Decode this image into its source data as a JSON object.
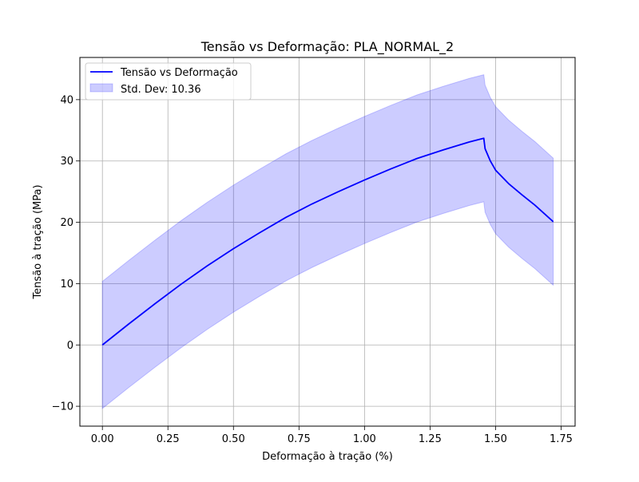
{
  "chart_data": {
    "type": "line",
    "title": "Tensão vs Deformação: PLA_NORMAL_2",
    "xlabel": "Deformação à tração (%)",
    "ylabel": "Tensão à tração (MPa)",
    "xlim": [
      -0.0859,
      1.8034
    ],
    "ylim": [
      -13.24,
      46.88
    ],
    "grid": true,
    "legend_position": "upper-left",
    "x_ticks": [
      {
        "value": 0.0,
        "label": "0.00"
      },
      {
        "value": 0.25,
        "label": "0.25"
      },
      {
        "value": 0.5,
        "label": "0.50"
      },
      {
        "value": 0.75,
        "label": "0.75"
      },
      {
        "value": 1.0,
        "label": "1.00"
      },
      {
        "value": 1.25,
        "label": "1.25"
      },
      {
        "value": 1.5,
        "label": "1.50"
      },
      {
        "value": 1.75,
        "label": "1.75"
      }
    ],
    "y_ticks": [
      {
        "value": -10,
        "label": "−10"
      },
      {
        "value": 0,
        "label": "0"
      },
      {
        "value": 10,
        "label": "10"
      },
      {
        "value": 20,
        "label": "20"
      },
      {
        "value": 30,
        "label": "30"
      },
      {
        "value": 40,
        "label": "40"
      }
    ],
    "std_dev": 10.36,
    "series": [
      {
        "name": "Tensão vs Deformação",
        "color": "#0000ff",
        "x": [
          0.0,
          0.1,
          0.2,
          0.3,
          0.4,
          0.5,
          0.6,
          0.7,
          0.8,
          0.9,
          1.0,
          1.1,
          1.2,
          1.3,
          1.4,
          1.455,
          1.46,
          1.48,
          1.5,
          1.55,
          1.6,
          1.65,
          1.72
        ],
        "y": [
          0.0,
          3.4,
          6.7,
          9.9,
          12.9,
          15.7,
          18.3,
          20.8,
          23.0,
          25.0,
          26.9,
          28.7,
          30.4,
          31.8,
          33.1,
          33.7,
          32.0,
          30.0,
          28.5,
          26.3,
          24.5,
          22.8,
          20.1
        ]
      }
    ],
    "band": {
      "label": "Std. Dev: 10.36",
      "fill": "#0000ff",
      "fill_opacity": 0.2
    }
  }
}
